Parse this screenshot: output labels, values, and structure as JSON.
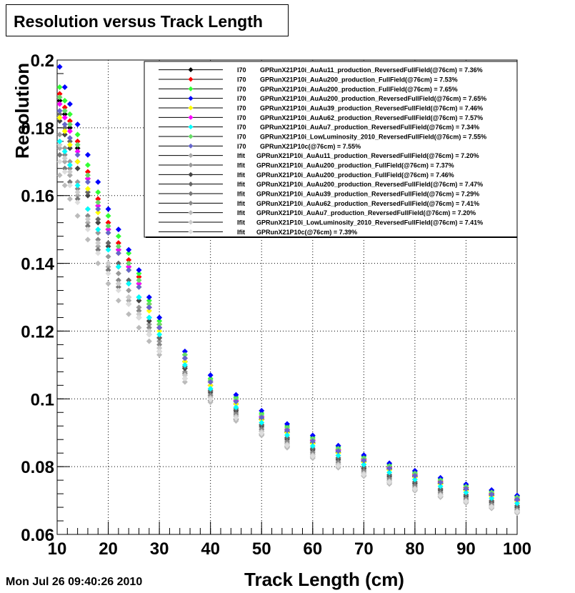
{
  "chart_data": {
    "type": "scatter",
    "title": "Resolution versus Track Length",
    "xlabel": "Track Length (cm)",
    "ylabel": "Resolution",
    "xlim": [
      10,
      100
    ],
    "ylim": [
      0.06,
      0.2
    ],
    "xticks": [
      10,
      20,
      30,
      40,
      50,
      60,
      70,
      80,
      90,
      100
    ],
    "yticks": [
      0.06,
      0.08,
      0.1,
      0.12,
      0.14,
      0.16,
      0.18,
      0.2
    ],
    "ytick_labels": [
      "0.06",
      "0.08",
      "0.1",
      "0.12",
      "0.14",
      "0.16",
      "0.18",
      "0.2"
    ],
    "grid": true,
    "legend_position": "top-right",
    "x": [
      10.5,
      11.5,
      12.5,
      14,
      16,
      18,
      20,
      22,
      24,
      26,
      28,
      30,
      35,
      40,
      45,
      50,
      55,
      60,
      65,
      70,
      75,
      80,
      85,
      90,
      95,
      100
    ],
    "series": [
      {
        "method": "I70",
        "name": "GPRunX21P10i_AuAu11_production_ReversedFullField",
        "summary": "(@76cm) = 7.36%",
        "color": "#000000",
        "values": [
          0.188,
          0.184,
          0.18,
          0.174,
          0.165,
          0.157,
          0.15,
          0.144,
          0.139,
          0.134,
          0.127,
          0.121,
          0.111,
          0.104,
          0.0985,
          0.094,
          0.0902,
          0.087,
          0.0842,
          0.0815,
          0.0792,
          0.0771,
          0.0751,
          0.0732,
          0.0716,
          0.0701
        ]
      },
      {
        "method": "I70",
        "name": "GPRunX21P10i_AuAu200_production_FullField",
        "summary": "(@76cm) = 7.53%",
        "color": "#ff0000",
        "values": [
          0.19,
          0.186,
          0.182,
          0.176,
          0.167,
          0.159,
          0.152,
          0.146,
          0.141,
          0.136,
          0.128,
          0.122,
          0.112,
          0.105,
          0.0995,
          0.0948,
          0.091,
          0.0878,
          0.085,
          0.0822,
          0.0799,
          0.0777,
          0.0757,
          0.0738,
          0.0721,
          0.0705
        ]
      },
      {
        "method": "I70",
        "name": "GPRunX21P10i_AuAu200_production_FullField",
        "summary": "(@76cm) = 7.65%",
        "color": "#33ff33",
        "values": [
          0.192,
          0.188,
          0.184,
          0.178,
          0.169,
          0.161,
          0.154,
          0.148,
          0.143,
          0.137,
          0.129,
          0.123,
          0.113,
          0.106,
          0.1005,
          0.0958,
          0.092,
          0.0887,
          0.0858,
          0.083,
          0.0806,
          0.0784,
          0.0764,
          0.0745,
          0.0728,
          0.0712
        ]
      },
      {
        "method": "I70",
        "name": "GPRunX21P10i_AuAu200_production_ReversedFullField",
        "summary": "(@76cm) = 7.65%",
        "color": "#0000ff",
        "values": [
          0.198,
          0.192,
          0.187,
          0.181,
          0.172,
          0.164,
          0.156,
          0.15,
          0.144,
          0.138,
          0.13,
          0.124,
          0.114,
          0.107,
          0.1012,
          0.0965,
          0.0926,
          0.0892,
          0.0862,
          0.0834,
          0.081,
          0.0788,
          0.0767,
          0.0748,
          0.0731,
          0.0715
        ]
      },
      {
        "method": "I70",
        "name": "GPRunX21P10i_AuAu39_production_ReversedFullField",
        "summary": "(@76cm) = 7.46%",
        "color": "#ffff00",
        "values": [
          0.183,
          0.179,
          0.175,
          0.17,
          0.162,
          0.155,
          0.149,
          0.143,
          0.138,
          0.133,
          0.126,
          0.12,
          0.111,
          0.104,
          0.0985,
          0.0938,
          0.09,
          0.0868,
          0.084,
          0.0813,
          0.079,
          0.0768,
          0.0748,
          0.0729,
          0.0712,
          0.0697
        ]
      },
      {
        "method": "I70",
        "name": "GPRunX21P10i_AuAu62_production_ReversedFullField",
        "summary": "(@76cm) = 7.57%",
        "color": "#ff00ff",
        "values": [
          0.187,
          0.183,
          0.179,
          0.173,
          0.165,
          0.157,
          0.15,
          0.144,
          0.139,
          0.134,
          0.127,
          0.121,
          0.112,
          0.105,
          0.0995,
          0.0948,
          0.091,
          0.0877,
          0.0848,
          0.082,
          0.0797,
          0.0774,
          0.0754,
          0.0735,
          0.0718,
          0.0702
        ]
      },
      {
        "method": "I70",
        "name": "GPRunX21P10i_AuAu7_production_ReversedFullField",
        "summary": "(@76cm) = 7.34%",
        "color": "#00ffff",
        "values": [
          0.176,
          0.173,
          0.169,
          0.163,
          0.156,
          0.15,
          0.144,
          0.139,
          0.134,
          0.13,
          0.124,
          0.119,
          0.11,
          0.103,
          0.0975,
          0.093,
          0.0893,
          0.0861,
          0.0833,
          0.0806,
          0.0783,
          0.0762,
          0.0742,
          0.0724,
          0.0707,
          0.0692
        ]
      },
      {
        "method": "I70",
        "name": "GPRunX21P10i_LowLuminosity_2010_ReversedFullField",
        "summary": "(@76cm) = 7.55%",
        "color": "#66dd66",
        "values": [
          0.189,
          0.185,
          0.181,
          0.175,
          0.166,
          0.158,
          0.151,
          0.145,
          0.14,
          0.135,
          0.128,
          0.122,
          0.113,
          0.1055,
          0.1,
          0.0953,
          0.0915,
          0.0882,
          0.0853,
          0.0825,
          0.0802,
          0.078,
          0.076,
          0.0741,
          0.0724,
          0.0709
        ]
      },
      {
        "method": "I70",
        "name": "GPRunX21P10c",
        "summary": "(@76cm) = 7.55%",
        "color": "#6666cc",
        "values": [
          0.185,
          0.181,
          0.177,
          0.172,
          0.164,
          0.156,
          0.149,
          0.143,
          0.138,
          0.133,
          0.127,
          0.121,
          0.112,
          0.105,
          0.0992,
          0.0945,
          0.0907,
          0.0875,
          0.0846,
          0.0818,
          0.0795,
          0.0773,
          0.0753,
          0.0735,
          0.0718,
          0.0703
        ]
      },
      {
        "method": "Ifit",
        "name": "GPRunX21P10i_AuAu11_production_ReversedFullField",
        "summary": "(@76cm) = 7.20%",
        "color": "#aaaaaa",
        "values": [
          0.174,
          0.17,
          0.166,
          0.16,
          0.152,
          0.145,
          0.139,
          0.134,
          0.129,
          0.125,
          0.12,
          0.115,
          0.107,
          0.1005,
          0.095,
          0.0905,
          0.0868,
          0.0836,
          0.0808,
          0.0782,
          0.0759,
          0.0738,
          0.0719,
          0.0701,
          0.0685,
          0.0671
        ]
      },
      {
        "method": "Ifit",
        "name": "GPRunX21P10i_AuAu200_production_FullField",
        "summary": "(@76cm) = 7.37%",
        "color": "#999999",
        "values": [
          0.178,
          0.174,
          0.17,
          0.164,
          0.156,
          0.149,
          0.142,
          0.137,
          0.132,
          0.127,
          0.122,
          0.117,
          0.108,
          0.1015,
          0.096,
          0.0915,
          0.0878,
          0.0846,
          0.0818,
          0.0791,
          0.0768,
          0.0747,
          0.0727,
          0.0709,
          0.0693,
          0.0678
        ]
      },
      {
        "method": "Ifit",
        "name": "GPRunX21P10i_AuAu200_production_FullField",
        "summary": "(@76cm) = 7.46%",
        "color": "#444444",
        "values": [
          0.182,
          0.178,
          0.174,
          0.168,
          0.16,
          0.152,
          0.145,
          0.139,
          0.134,
          0.129,
          0.123,
          0.118,
          0.109,
          0.102,
          0.0965,
          0.092,
          0.0882,
          0.085,
          0.0822,
          0.0795,
          0.0772,
          0.0751,
          0.0731,
          0.0713,
          0.0696,
          0.0681
        ]
      },
      {
        "method": "Ifit",
        "name": "GPRunX21P10i_AuAu200_production_ReversedFullField",
        "summary": "(@76cm) = 7.47%",
        "color": "#666666",
        "values": [
          0.184,
          0.18,
          0.176,
          0.17,
          0.161,
          0.153,
          0.146,
          0.14,
          0.135,
          0.13,
          0.124,
          0.118,
          0.1095,
          0.1025,
          0.097,
          0.0924,
          0.0886,
          0.0854,
          0.0826,
          0.0799,
          0.0776,
          0.0755,
          0.0735,
          0.0717,
          0.07,
          0.0685
        ]
      },
      {
        "method": "Ifit",
        "name": "GPRunX21P10i_AuAu39_production_ReversedFullField",
        "summary": "(@76cm) = 7.29%",
        "color": "#777777",
        "values": [
          0.172,
          0.168,
          0.164,
          0.159,
          0.151,
          0.144,
          0.138,
          0.133,
          0.128,
          0.124,
          0.119,
          0.114,
          0.106,
          0.0995,
          0.094,
          0.0896,
          0.086,
          0.0829,
          0.0801,
          0.0775,
          0.0753,
          0.0732,
          0.0713,
          0.0696,
          0.068,
          0.0666
        ]
      },
      {
        "method": "Ifit",
        "name": "GPRunX21P10i_AuAu62_production_ReversedFullField",
        "summary": "(@76cm) = 7.41%",
        "color": "#888888",
        "values": [
          0.176,
          0.172,
          0.168,
          0.162,
          0.154,
          0.147,
          0.14,
          0.135,
          0.13,
          0.126,
          0.121,
          0.116,
          0.1075,
          0.101,
          0.0955,
          0.091,
          0.0873,
          0.0841,
          0.0813,
          0.0787,
          0.0764,
          0.0743,
          0.0723,
          0.0705,
          0.0689,
          0.0674
        ]
      },
      {
        "method": "Ifit",
        "name": "GPRunX21P10i_AuAu7_production_ReversedFullField",
        "summary": "(@76cm) = 7.20%",
        "color": "#bbbbbb",
        "values": [
          0.166,
          0.163,
          0.159,
          0.154,
          0.147,
          0.14,
          0.134,
          0.129,
          0.125,
          0.121,
          0.117,
          0.113,
          0.105,
          0.099,
          0.0935,
          0.0892,
          0.0856,
          0.0825,
          0.0797,
          0.0772,
          0.0749,
          0.0729,
          0.071,
          0.0693,
          0.0677,
          0.0663
        ]
      },
      {
        "method": "Ifit",
        "name": "GPRunX21P10i_LowLuminosity_2010_ReversedFullField",
        "summary": "(@76cm) = 7.41%",
        "color": "#cccccc",
        "values": [
          0.175,
          0.171,
          0.167,
          0.161,
          0.153,
          0.146,
          0.14,
          0.134,
          0.13,
          0.125,
          0.12,
          0.115,
          0.107,
          0.1003,
          0.0948,
          0.0903,
          0.0866,
          0.0834,
          0.0806,
          0.078,
          0.0757,
          0.0736,
          0.0717,
          0.0699,
          0.0683,
          0.0669
        ]
      },
      {
        "method": "Ifit",
        "name": "GPRunX21P10c",
        "summary": "(@76cm) = 7.39%",
        "color": "#dddddd",
        "values": [
          0.17,
          0.167,
          0.163,
          0.158,
          0.15,
          0.143,
          0.137,
          0.132,
          0.128,
          0.124,
          0.119,
          0.114,
          0.106,
          0.0998,
          0.0943,
          0.0898,
          0.0862,
          0.083,
          0.0802,
          0.0776,
          0.0754,
          0.0733,
          0.0714,
          0.0697,
          0.0681,
          0.0667
        ]
      }
    ]
  },
  "footer": {
    "datestamp": "Mon Jul 26 09:40:26 2010"
  }
}
